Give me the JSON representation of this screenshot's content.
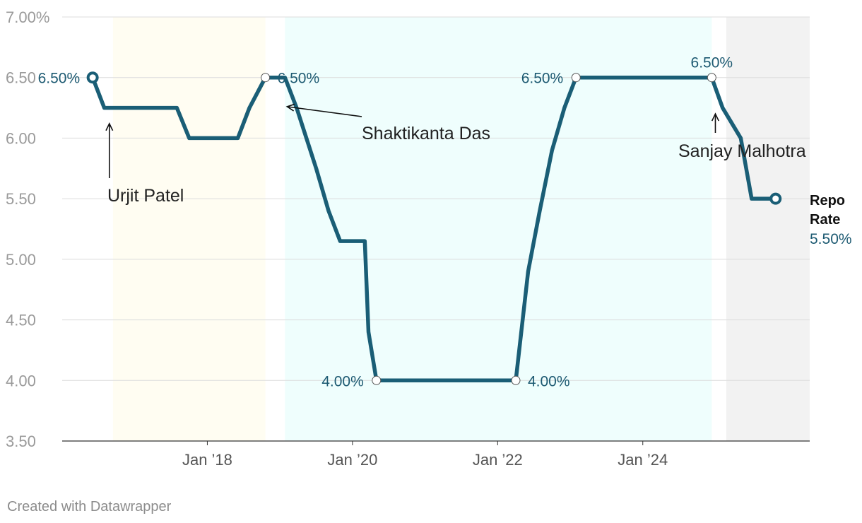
{
  "chart_data": {
    "type": "line",
    "y_unit": "%",
    "ylim": [
      3.5,
      7.0
    ],
    "xlim": [
      2016.0,
      2026.3
    ],
    "yticks": [
      {
        "value": 7.0,
        "label": "7.00%"
      },
      {
        "value": 6.5,
        "label": "6.50"
      },
      {
        "value": 6.0,
        "label": "6.00"
      },
      {
        "value": 5.5,
        "label": "5.50"
      },
      {
        "value": 5.0,
        "label": "5.00"
      },
      {
        "value": 4.5,
        "label": "4.50"
      },
      {
        "value": 4.0,
        "label": "4.00"
      },
      {
        "value": 3.5,
        "label": "3.50"
      }
    ],
    "xticks": [
      {
        "value": 2018.0,
        "label": "Jan ’18"
      },
      {
        "value": 2020.0,
        "label": "Jan ’20"
      },
      {
        "value": 2022.0,
        "label": "Jan ’22"
      },
      {
        "value": 2024.0,
        "label": "Jan ’24"
      }
    ],
    "periods": [
      {
        "name": "Urjit Patel",
        "start": 2016.7,
        "end": 2018.8,
        "color": "#fffdf2"
      },
      {
        "name": "Shaktikanta Das",
        "start": 2019.07,
        "end": 2024.95,
        "color": "#effefd"
      },
      {
        "name": "Sanjay Malhotra",
        "start": 2025.15,
        "end": 2026.3,
        "color": "#f2f2f2"
      }
    ],
    "series": [
      {
        "name": "Repo Rate",
        "color": "#1a5e76",
        "x": [
          2016.42,
          2016.58,
          2017.58,
          2017.75,
          2018.42,
          2018.58,
          2018.8,
          2019.07,
          2019.23,
          2019.5,
          2019.67,
          2019.83,
          2020.17,
          2020.22,
          2020.33,
          2022.25,
          2022.42,
          2022.58,
          2022.75,
          2022.92,
          2023.08,
          2024.95,
          2025.1,
          2025.35,
          2025.5,
          2025.65,
          2025.83
        ],
        "values": [
          6.5,
          6.25,
          6.25,
          6.0,
          6.0,
          6.25,
          6.5,
          6.5,
          6.25,
          5.75,
          5.4,
          5.15,
          5.15,
          4.4,
          4.0,
          4.0,
          4.9,
          5.4,
          5.9,
          6.25,
          6.5,
          6.5,
          6.25,
          6.0,
          5.5,
          5.5,
          5.5
        ]
      }
    ],
    "value_labels": [
      {
        "x": 2016.42,
        "y": 6.5,
        "text": "6.50%",
        "side": "left",
        "marker": "solid"
      },
      {
        "x": 2018.8,
        "y": 6.5,
        "text": "6.50%",
        "side": "right",
        "marker": "hollow"
      },
      {
        "x": 2020.33,
        "y": 4.0,
        "text": "4.00%",
        "side": "left",
        "marker": "hollow"
      },
      {
        "x": 2022.25,
        "y": 4.0,
        "text": "4.00%",
        "side": "right",
        "marker": "hollow"
      },
      {
        "x": 2023.08,
        "y": 6.5,
        "text": "6.50%",
        "side": "left",
        "marker": "hollow"
      },
      {
        "x": 2024.95,
        "y": 6.5,
        "text": "6.50%",
        "side": "above",
        "marker": "hollow"
      }
    ],
    "annotations": [
      {
        "text": "Urjit Patel",
        "arrow_to_x": 2016.65,
        "arrow_to_y": 6.12
      },
      {
        "text": "Shaktikanta Das",
        "arrow_to_x": 2019.1,
        "arrow_to_y": 6.26
      },
      {
        "text": "Sanjay Malhotra",
        "arrow_to_x": 2025.0,
        "arrow_to_y": 6.2
      }
    ],
    "end_label": {
      "line1": "Repo",
      "line2": "Rate",
      "value": "5.50%"
    }
  },
  "credit": "Created with Datawrapper"
}
